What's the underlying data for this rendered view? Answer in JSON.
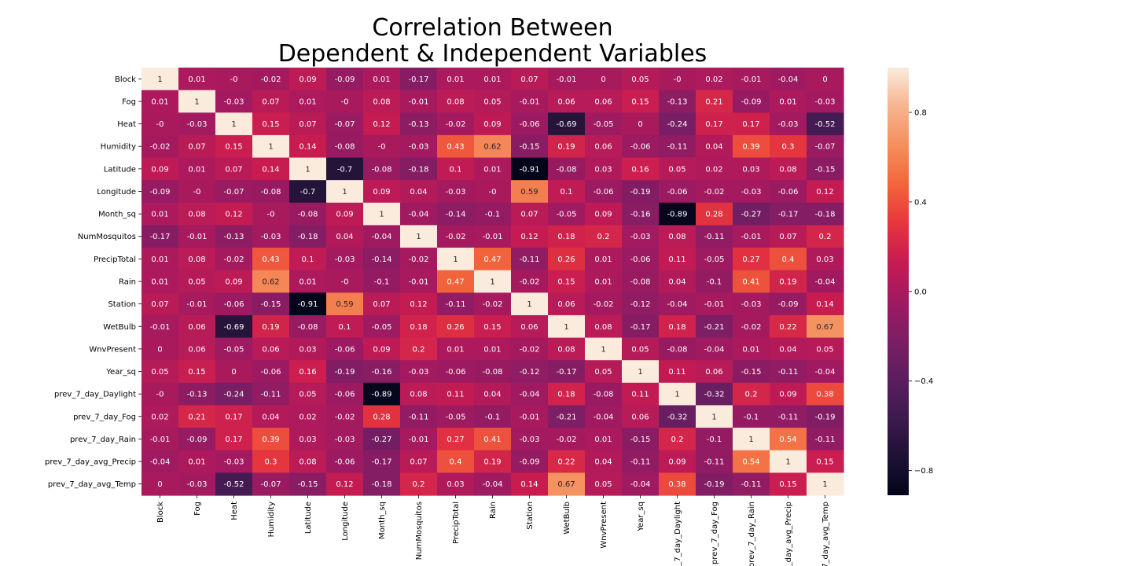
{
  "chart_data": {
    "type": "heatmap",
    "title": [
      "Correlation Between",
      "Dependent & Independent Variables"
    ],
    "variables": [
      "Block",
      "Fog",
      "Heat",
      "Humidity",
      "Latitude",
      "Longitude",
      "Month_sq",
      "NumMosquitos",
      "PrecipTotal",
      "Rain",
      "Station",
      "WetBulb",
      "WnvPresent",
      "Year_sq",
      "prev_7_day_Daylight",
      "prev_7_day_Fog",
      "prev_7_day_Rain",
      "prev_7_day_avg_Precip",
      "prev_7_day_avg_Temp"
    ],
    "values": [
      [
        1,
        0.01,
        0,
        -0.02,
        0.09,
        -0.09,
        0.01,
        -0.17,
        0.01,
        0.01,
        0.07,
        -0.01,
        0,
        0.05,
        0,
        0.02,
        -0.01,
        -0.04,
        0
      ],
      [
        0.01,
        1,
        -0.03,
        0.07,
        0.01,
        0,
        0.08,
        -0.01,
        0.08,
        0.05,
        -0.01,
        0.06,
        0.06,
        0.15,
        -0.13,
        0.21,
        -0.09,
        0.01,
        -0.03
      ],
      [
        0,
        -0.03,
        1,
        0.15,
        0.07,
        -0.07,
        0.12,
        -0.13,
        -0.02,
        0.09,
        -0.06,
        -0.69,
        -0.05,
        0,
        -0.24,
        0.17,
        0.17,
        -0.03,
        -0.52
      ],
      [
        -0.02,
        0.07,
        0.15,
        1,
        0.14,
        -0.08,
        0,
        -0.03,
        0.43,
        0.62,
        -0.15,
        0.19,
        0.06,
        -0.06,
        -0.11,
        0.04,
        0.39,
        0.3,
        -0.07
      ],
      [
        0.09,
        0.01,
        0.07,
        0.14,
        1,
        -0.7,
        -0.08,
        -0.18,
        0.1,
        0.01,
        -0.91,
        -0.08,
        0.03,
        0.16,
        0.05,
        0.02,
        0.03,
        0.08,
        -0.15
      ],
      [
        -0.09,
        0,
        -0.07,
        -0.08,
        -0.7,
        1,
        0.09,
        0.04,
        -0.03,
        0,
        0.59,
        0.1,
        -0.06,
        -0.19,
        -0.06,
        -0.02,
        -0.03,
        -0.06,
        0.12
      ],
      [
        0.01,
        0.08,
        0.12,
        0,
        -0.08,
        0.09,
        1,
        -0.04,
        -0.14,
        -0.1,
        0.07,
        -0.05,
        0.09,
        -0.16,
        -0.89,
        0.28,
        -0.27,
        -0.17,
        -0.18
      ],
      [
        -0.17,
        -0.01,
        -0.13,
        -0.03,
        -0.18,
        0.04,
        -0.04,
        1,
        -0.02,
        -0.01,
        0.12,
        0.18,
        0.2,
        -0.03,
        0.08,
        -0.11,
        -0.01,
        0.07,
        0.2
      ],
      [
        0.01,
        0.08,
        -0.02,
        0.43,
        0.1,
        -0.03,
        -0.14,
        -0.02,
        1,
        0.47,
        -0.11,
        0.26,
        0.01,
        -0.06,
        0.11,
        -0.05,
        0.27,
        0.4,
        0.03
      ],
      [
        0.01,
        0.05,
        0.09,
        0.62,
        0.01,
        0,
        -0.1,
        -0.01,
        0.47,
        1,
        -0.02,
        0.15,
        0.01,
        -0.08,
        0.04,
        -0.1,
        0.41,
        0.19,
        -0.04
      ],
      [
        0.07,
        -0.01,
        -0.06,
        -0.15,
        -0.91,
        0.59,
        0.07,
        0.12,
        -0.11,
        -0.02,
        1,
        0.06,
        -0.02,
        -0.12,
        -0.04,
        -0.01,
        -0.03,
        -0.09,
        0.14
      ],
      [
        -0.01,
        0.06,
        -0.69,
        0.19,
        -0.08,
        0.1,
        -0.05,
        0.18,
        0.26,
        0.15,
        0.06,
        1,
        0.08,
        -0.17,
        0.18,
        -0.21,
        -0.02,
        0.22,
        0.67
      ],
      [
        0,
        0.06,
        -0.05,
        0.06,
        0.03,
        -0.06,
        0.09,
        0.2,
        0.01,
        0.01,
        -0.02,
        0.08,
        1,
        0.05,
        -0.08,
        -0.04,
        0.01,
        0.04,
        0.05
      ],
      [
        0.05,
        0.15,
        0,
        -0.06,
        0.16,
        -0.19,
        -0.16,
        -0.03,
        -0.06,
        -0.08,
        -0.12,
        -0.17,
        0.05,
        1,
        0.11,
        0.06,
        -0.15,
        -0.11,
        -0.04
      ],
      [
        0,
        -0.13,
        -0.24,
        -0.11,
        0.05,
        -0.06,
        -0.89,
        0.08,
        0.11,
        0.04,
        -0.04,
        0.18,
        -0.08,
        0.11,
        1,
        -0.32,
        0.2,
        0.09,
        0.38
      ],
      [
        0.02,
        0.21,
        0.17,
        0.04,
        0.02,
        -0.02,
        0.28,
        -0.11,
        -0.05,
        -0.1,
        -0.01,
        -0.21,
        -0.04,
        0.06,
        -0.32,
        1,
        -0.1,
        -0.11,
        -0.19
      ],
      [
        -0.01,
        -0.09,
        0.17,
        0.39,
        0.03,
        -0.03,
        -0.27,
        -0.01,
        0.27,
        0.41,
        -0.03,
        -0.02,
        0.01,
        -0.15,
        0.2,
        -0.1,
        1,
        0.54,
        -0.11
      ],
      [
        -0.04,
        0.01,
        -0.03,
        0.3,
        0.08,
        -0.06,
        -0.17,
        0.07,
        0.4,
        0.19,
        -0.09,
        0.22,
        0.04,
        -0.11,
        0.09,
        -0.11,
        0.54,
        1,
        0.15
      ],
      [
        0,
        -0.03,
        -0.52,
        -0.07,
        -0.15,
        0.12,
        -0.18,
        0.2,
        0.03,
        -0.04,
        0.14,
        0.67,
        0.05,
        -0.04,
        0.38,
        -0.19,
        -0.11,
        0.15,
        1
      ]
    ],
    "labels": [
      [
        "1",
        "0.01",
        "-0",
        "-0.02",
        "0.09",
        "-0.09",
        "0.01",
        "-0.17",
        "0.01",
        "0.01",
        "0.07",
        "-0.01",
        "0",
        "0.05",
        "-0",
        "0.02",
        "-0.01",
        "-0.04",
        "0"
      ],
      [
        "0.01",
        "1",
        "-0.03",
        "0.07",
        "0.01",
        "-0",
        "0.08",
        "-0.01",
        "0.08",
        "0.05",
        "-0.01",
        "0.06",
        "0.06",
        "0.15",
        "-0.13",
        "0.21",
        "-0.09",
        "0.01",
        "-0.03"
      ],
      [
        "-0",
        "-0.03",
        "1",
        "0.15",
        "0.07",
        "-0.07",
        "0.12",
        "-0.13",
        "-0.02",
        "0.09",
        "-0.06",
        "-0.69",
        "-0.05",
        "0",
        "-0.24",
        "0.17",
        "0.17",
        "-0.03",
        "-0.52"
      ],
      [
        "-0.02",
        "0.07",
        "0.15",
        "1",
        "0.14",
        "-0.08",
        "-0",
        "-0.03",
        "0.43",
        "0.62",
        "-0.15",
        "0.19",
        "0.06",
        "-0.06",
        "-0.11",
        "0.04",
        "0.39",
        "0.3",
        "-0.07"
      ],
      [
        "0.09",
        "0.01",
        "0.07",
        "0.14",
        "1",
        "-0.7",
        "-0.08",
        "-0.18",
        "0.1",
        "0.01",
        "-0.91",
        "-0.08",
        "0.03",
        "0.16",
        "0.05",
        "0.02",
        "0.03",
        "0.08",
        "-0.15"
      ],
      [
        "-0.09",
        "-0",
        "-0.07",
        "-0.08",
        "-0.7",
        "1",
        "0.09",
        "0.04",
        "-0.03",
        "-0",
        "0.59",
        "0.1",
        "-0.06",
        "-0.19",
        "-0.06",
        "-0.02",
        "-0.03",
        "-0.06",
        "0.12"
      ],
      [
        "0.01",
        "0.08",
        "0.12",
        "-0",
        "-0.08",
        "0.09",
        "1",
        "-0.04",
        "-0.14",
        "-0.1",
        "0.07",
        "-0.05",
        "0.09",
        "-0.16",
        "-0.89",
        "0.28",
        "-0.27",
        "-0.17",
        "-0.18"
      ],
      [
        "-0.17",
        "-0.01",
        "-0.13",
        "-0.03",
        "-0.18",
        "0.04",
        "-0.04",
        "1",
        "-0.02",
        "-0.01",
        "0.12",
        "0.18",
        "0.2",
        "-0.03",
        "0.08",
        "-0.11",
        "-0.01",
        "0.07",
        "0.2"
      ],
      [
        "0.01",
        "0.08",
        "-0.02",
        "0.43",
        "0.1",
        "-0.03",
        "-0.14",
        "-0.02",
        "1",
        "0.47",
        "-0.11",
        "0.26",
        "0.01",
        "-0.06",
        "0.11",
        "-0.05",
        "0.27",
        "0.4",
        "0.03"
      ],
      [
        "0.01",
        "0.05",
        "0.09",
        "0.62",
        "0.01",
        "-0",
        "-0.1",
        "-0.01",
        "0.47",
        "1",
        "-0.02",
        "0.15",
        "0.01",
        "-0.08",
        "0.04",
        "-0.1",
        "0.41",
        "0.19",
        "-0.04"
      ],
      [
        "0.07",
        "-0.01",
        "-0.06",
        "-0.15",
        "-0.91",
        "0.59",
        "0.07",
        "0.12",
        "-0.11",
        "-0.02",
        "1",
        "0.06",
        "-0.02",
        "-0.12",
        "-0.04",
        "-0.01",
        "-0.03",
        "-0.09",
        "0.14"
      ],
      [
        "-0.01",
        "0.06",
        "-0.69",
        "0.19",
        "-0.08",
        "0.1",
        "-0.05",
        "0.18",
        "0.26",
        "0.15",
        "0.06",
        "1",
        "0.08",
        "-0.17",
        "0.18",
        "-0.21",
        "-0.02",
        "0.22",
        "0.67"
      ],
      [
        "0",
        "0.06",
        "-0.05",
        "0.06",
        "0.03",
        "-0.06",
        "0.09",
        "0.2",
        "0.01",
        "0.01",
        "-0.02",
        "0.08",
        "1",
        "0.05",
        "-0.08",
        "-0.04",
        "0.01",
        "0.04",
        "0.05"
      ],
      [
        "0.05",
        "0.15",
        "0",
        "-0.06",
        "0.16",
        "-0.19",
        "-0.16",
        "-0.03",
        "-0.06",
        "-0.08",
        "-0.12",
        "-0.17",
        "0.05",
        "1",
        "0.11",
        "0.06",
        "-0.15",
        "-0.11",
        "-0.04"
      ],
      [
        "-0",
        "-0.13",
        "-0.24",
        "-0.11",
        "0.05",
        "-0.06",
        "-0.89",
        "0.08",
        "0.11",
        "0.04",
        "-0.04",
        "0.18",
        "-0.08",
        "0.11",
        "1",
        "-0.32",
        "0.2",
        "0.09",
        "0.38"
      ],
      [
        "0.02",
        "0.21",
        "0.17",
        "0.04",
        "0.02",
        "-0.02",
        "0.28",
        "-0.11",
        "-0.05",
        "-0.1",
        "-0.01",
        "-0.21",
        "-0.04",
        "0.06",
        "-0.32",
        "1",
        "-0.1",
        "-0.11",
        "-0.19"
      ],
      [
        "-0.01",
        "-0.09",
        "0.17",
        "0.39",
        "0.03",
        "-0.03",
        "-0.27",
        "-0.01",
        "0.27",
        "0.41",
        "-0.03",
        "-0.02",
        "0.01",
        "-0.15",
        "0.2",
        "-0.1",
        "1",
        "0.54",
        "-0.11"
      ],
      [
        "-0.04",
        "0.01",
        "-0.03",
        "0.3",
        "0.08",
        "-0.06",
        "-0.17",
        "0.07",
        "0.4",
        "0.19",
        "-0.09",
        "0.22",
        "0.04",
        "-0.11",
        "0.09",
        "-0.11",
        "0.54",
        "1",
        "0.15"
      ],
      [
        "0",
        "-0.03",
        "-0.52",
        "-0.07",
        "-0.15",
        "0.12",
        "-0.18",
        "0.2",
        "0.03",
        "-0.04",
        "0.14",
        "0.67",
        "0.05",
        "-0.04",
        "0.38",
        "-0.19",
        "-0.11",
        "0.15",
        "1"
      ]
    ],
    "colorbar": {
      "range": [
        -0.91,
        1
      ],
      "ticks": [
        0.8,
        0.4,
        0.0,
        -0.4,
        -0.8
      ],
      "tick_labels": [
        "0.8",
        "0.4",
        "0.0",
        "−0.4",
        "−0.8"
      ],
      "colormap": "rocket",
      "colormap_stops": [
        "#03051a",
        "#1e1234",
        "#3d1a4f",
        "#5c1e5f",
        "#7d1e65",
        "#a01a61",
        "#c71b52",
        "#e6363d",
        "#f2653b",
        "#f48e5d",
        "#f6b48e",
        "#faebdd"
      ]
    },
    "grid": false
  }
}
